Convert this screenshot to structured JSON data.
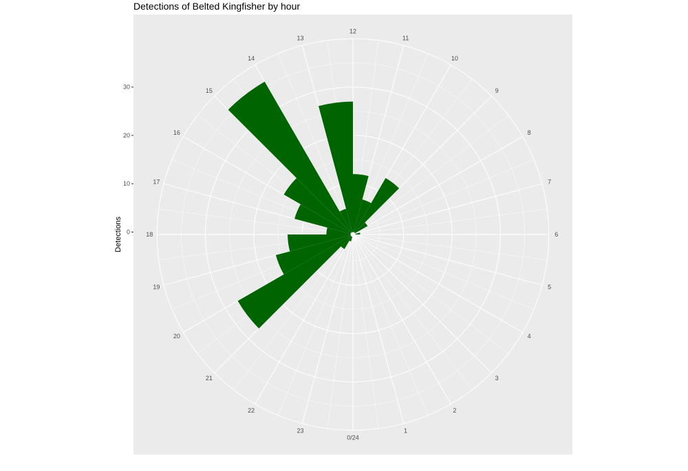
{
  "chart_data": {
    "type": "bar",
    "coord": "polar",
    "title": "Detections of Belted Kingfisher by hour",
    "ylabel": "Detections",
    "xlabel": "",
    "y_ticks": [
      "0",
      "10",
      "20",
      "30"
    ],
    "ylim": [
      0,
      40
    ],
    "hour_labels": [
      "0/24",
      "1",
      "2",
      "3",
      "4",
      "5",
      "6",
      "7",
      "8",
      "9",
      "10",
      "11",
      "12",
      "13",
      "14",
      "15",
      "16",
      "17",
      "18",
      "19",
      "20",
      "21",
      "22",
      "23"
    ],
    "bar_color": "#006400",
    "panel_color": "#ebebeb",
    "grid_color": "#ffffff",
    "series": [
      {
        "x": [
          0.5,
          1.5,
          2.5,
          3.5,
          4.5,
          5.5,
          6.5,
          7.5,
          8.5,
          9.5,
          10.5,
          11.5,
          12.5,
          13.5,
          14.5,
          15.5,
          16.5,
          17.5,
          18.5,
          19.5,
          20.5,
          21.5,
          22.5,
          23.5
        ],
        "values": [
          0,
          0,
          0,
          0,
          0,
          0,
          0,
          0,
          0,
          0,
          0,
          0,
          0,
          0,
          0,
          0,
          0,
          0,
          0,
          0,
          0,
          0,
          0,
          0
        ]
      }
    ],
    "bars": [
      {
        "hour": 6.5,
        "value": 1
      },
      {
        "hour": 8.5,
        "value": 3
      },
      {
        "hour": 9.5,
        "value": 13
      },
      {
        "hour": 10.5,
        "value": 7
      },
      {
        "hour": 11.5,
        "value": 12
      },
      {
        "hour": 12.5,
        "value": 27
      },
      {
        "hour": 13.5,
        "value": 5
      },
      {
        "hour": 14.5,
        "value": 36
      },
      {
        "hour": 15.5,
        "value": 16
      },
      {
        "hour": 16.5,
        "value": 12
      },
      {
        "hour": 17.5,
        "value": 5
      },
      {
        "hour": 18.5,
        "value": 13
      },
      {
        "hour": 19.5,
        "value": 16
      },
      {
        "hour": 20.5,
        "value": 27
      },
      {
        "hour": 21.5,
        "value": 3
      },
      {
        "hour": 22.5,
        "value": 1
      }
    ]
  }
}
